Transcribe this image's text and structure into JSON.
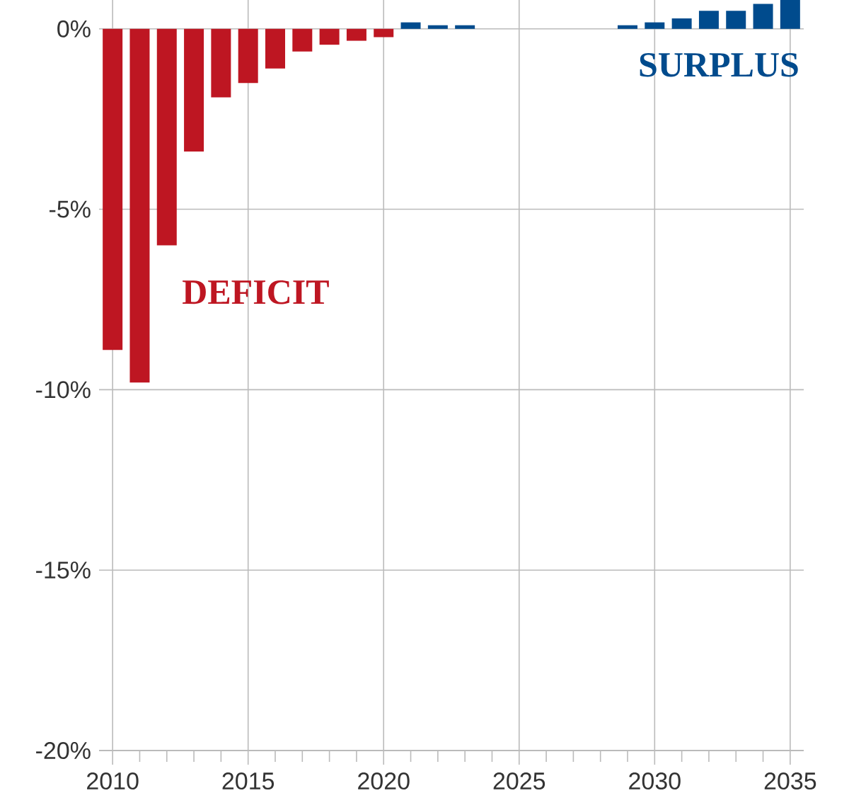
{
  "chart_data": {
    "type": "bar",
    "x": [
      2010,
      2011,
      2012,
      2013,
      2014,
      2015,
      2016,
      2017,
      2018,
      2019,
      2020,
      2021,
      2022,
      2023,
      2024,
      2025,
      2026,
      2027,
      2028,
      2029,
      2030,
      2031,
      2032,
      2033,
      2034,
      2035
    ],
    "values": [
      -8.9,
      -9.8,
      -6.0,
      -3.4,
      -1.9,
      -1.5,
      -1.1,
      -0.63,
      -0.44,
      -0.33,
      -0.23,
      0.18,
      0.1,
      0.1,
      0,
      0,
      0,
      0,
      0,
      0.1,
      0.18,
      0.29,
      0.5,
      0.5,
      0.69,
      0.8
    ],
    "colors": [
      "#be1622",
      "#be1622",
      "#be1622",
      "#be1622",
      "#be1622",
      "#be1622",
      "#be1622",
      "#be1622",
      "#be1622",
      "#be1622",
      "#be1622",
      "#004b8d",
      "#004b8d",
      "#004b8d",
      "#004b8d",
      "#004b8d",
      "#004b8d",
      "#004b8d",
      "#004b8d",
      "#004b8d",
      "#004b8d",
      "#004b8d",
      "#004b8d",
      "#004b8d",
      "#004b8d",
      "#004b8d"
    ],
    "xlim": [
      2009.5,
      2035.5
    ],
    "xticks": [
      2010,
      2015,
      2020,
      2025,
      2030,
      2035,
      {
        "value": 2011,
        "label": null
      },
      {
        "value": 2012,
        "label": null
      },
      {
        "value": 2013,
        "label": null
      },
      {
        "value": 2014,
        "label": null
      },
      {
        "value": 2016,
        "label": null
      },
      {
        "value": 2017,
        "label": null
      },
      {
        "value": 2018,
        "label": null
      },
      {
        "value": 2019,
        "label": null
      },
      {
        "value": 2021,
        "label": null
      },
      {
        "value": 2022,
        "label": null
      },
      {
        "value": 2023,
        "label": null
      },
      {
        "value": 2024,
        "label": null
      },
      {
        "value": 2026,
        "label": null
      },
      {
        "value": 2027,
        "label": null
      },
      {
        "value": 2028,
        "label": null
      },
      {
        "value": 2029,
        "label": null
      },
      {
        "value": 2031,
        "label": null
      },
      {
        "value": 2032,
        "label": null
      },
      {
        "value": 2033,
        "label": null
      },
      {
        "value": 2034,
        "label": null
      }
    ],
    "ylim": [
      -20,
      0.8
    ],
    "yticks": [
      {
        "value": 0,
        "label": "0%"
      },
      {
        "value": -5,
        "label": "-5%"
      },
      {
        "value": -10,
        "label": "-10%"
      },
      {
        "value": -15,
        "label": "-15%"
      },
      {
        "value": -20,
        "label": "-20%"
      }
    ],
    "grid": true,
    "annotations": [
      "DEFICIT",
      "SURPLUS"
    ]
  }
}
